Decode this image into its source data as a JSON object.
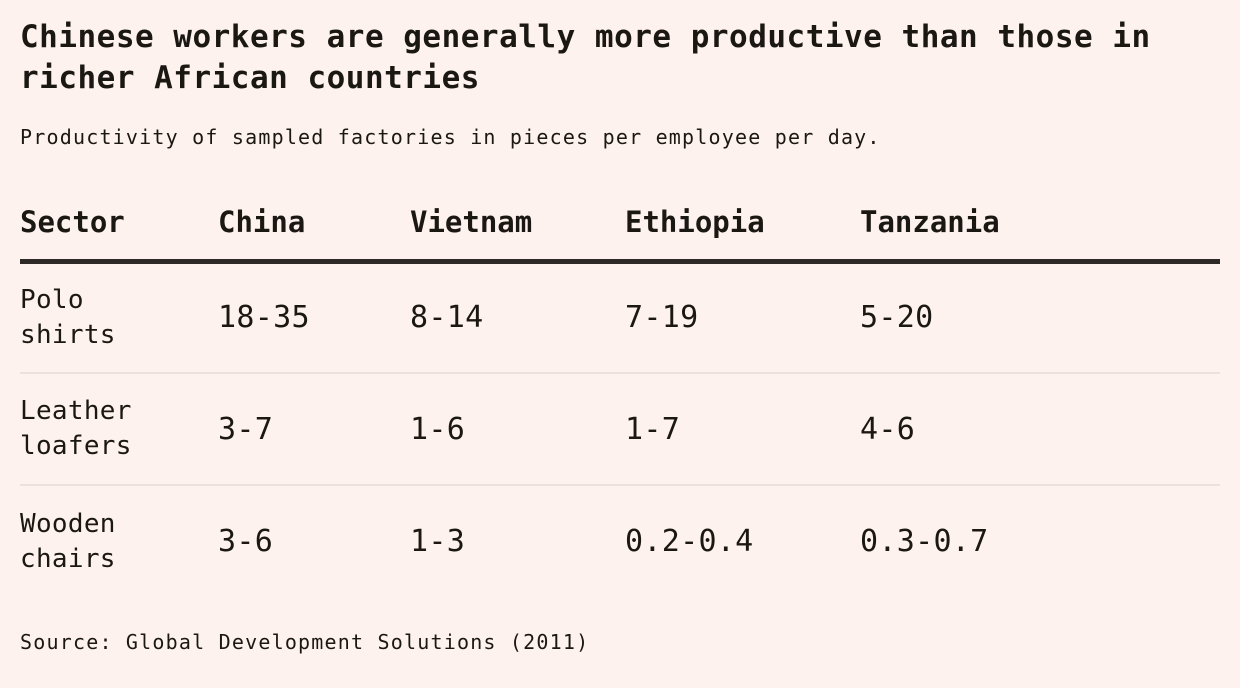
{
  "chart_data": {
    "type": "table",
    "title": "Chinese workers are generally more productive than those in richer African countries",
    "subtitle": "Productivity of sampled factories in pieces per employee per day.",
    "columns": [
      "Sector",
      "China",
      "Vietnam",
      "Ethiopia",
      "Tanzania"
    ],
    "rows": [
      [
        "Polo shirts",
        "18-35",
        "8-14",
        "7-19",
        "5-20"
      ],
      [
        "Leather loafers",
        "3-7",
        "1-6",
        "1-7",
        "4-6"
      ],
      [
        "Wooden chairs",
        "3-6",
        "1-3",
        "0.2-0.4",
        "0.3-0.7"
      ]
    ],
    "units": "pieces per employee per day",
    "source": "Source: Global Development Solutions (2011)",
    "layout": {
      "grid": "horizontal row dividers only",
      "header_rule": "thick",
      "legend": "none"
    }
  },
  "colors": {
    "bg": "#fdf2ee",
    "text": "#1b1713",
    "rule-dark": "#2d2a27",
    "rule-light": "#ece1dd"
  }
}
